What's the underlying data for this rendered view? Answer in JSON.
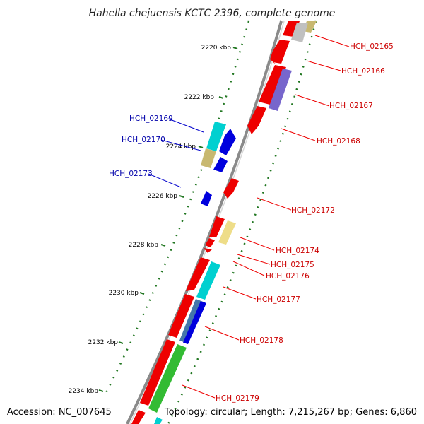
{
  "title": "Hahella chejuensis KCTC 2396, complete genome",
  "footer": {
    "accession": "Accession: NC_007645",
    "topology": "Topology: circular; Length: 7,215,267 bp; Genes: 6,860"
  },
  "colors": {
    "backbone": "#888888",
    "red_gene": "#ee0000",
    "blue_gene": "#0000dd",
    "cyan_gene": "#00d0d0",
    "olive_gene": "#c8b870",
    "purple_gene": "#7766cc",
    "steelblue_gene": "#4477aa",
    "pale_gene": "#eedd88",
    "grey_gene": "#c0c0c0",
    "green_gene": "#33bb33",
    "ticks": "#227722",
    "label_red": "#cc0000",
    "label_blue": "#0000aa"
  },
  "kbp_ticks": [
    "2220 kbp",
    "2222 kbp",
    "2224 kbp",
    "2226 kbp",
    "2228 kbp",
    "2230 kbp",
    "2232 kbp",
    "2234 kbp"
  ],
  "gene_labels": [
    {
      "id": "HCH_02165",
      "strand": "forward"
    },
    {
      "id": "HCH_02166",
      "strand": "forward"
    },
    {
      "id": "HCH_02167",
      "strand": "forward"
    },
    {
      "id": "HCH_02168",
      "strand": "forward"
    },
    {
      "id": "HCH_02169",
      "strand": "reverse"
    },
    {
      "id": "HCH_02170",
      "strand": "reverse"
    },
    {
      "id": "HCH_02172",
      "strand": "forward"
    },
    {
      "id": "HCH_02173",
      "strand": "reverse"
    },
    {
      "id": "HCH_02174",
      "strand": "forward"
    },
    {
      "id": "HCH_02175",
      "strand": "forward"
    },
    {
      "id": "HCH_02176",
      "strand": "forward"
    },
    {
      "id": "HCH_02177",
      "strand": "forward"
    },
    {
      "id": "HCH_02178",
      "strand": "forward"
    },
    {
      "id": "HCH_02179",
      "strand": "forward"
    }
  ]
}
